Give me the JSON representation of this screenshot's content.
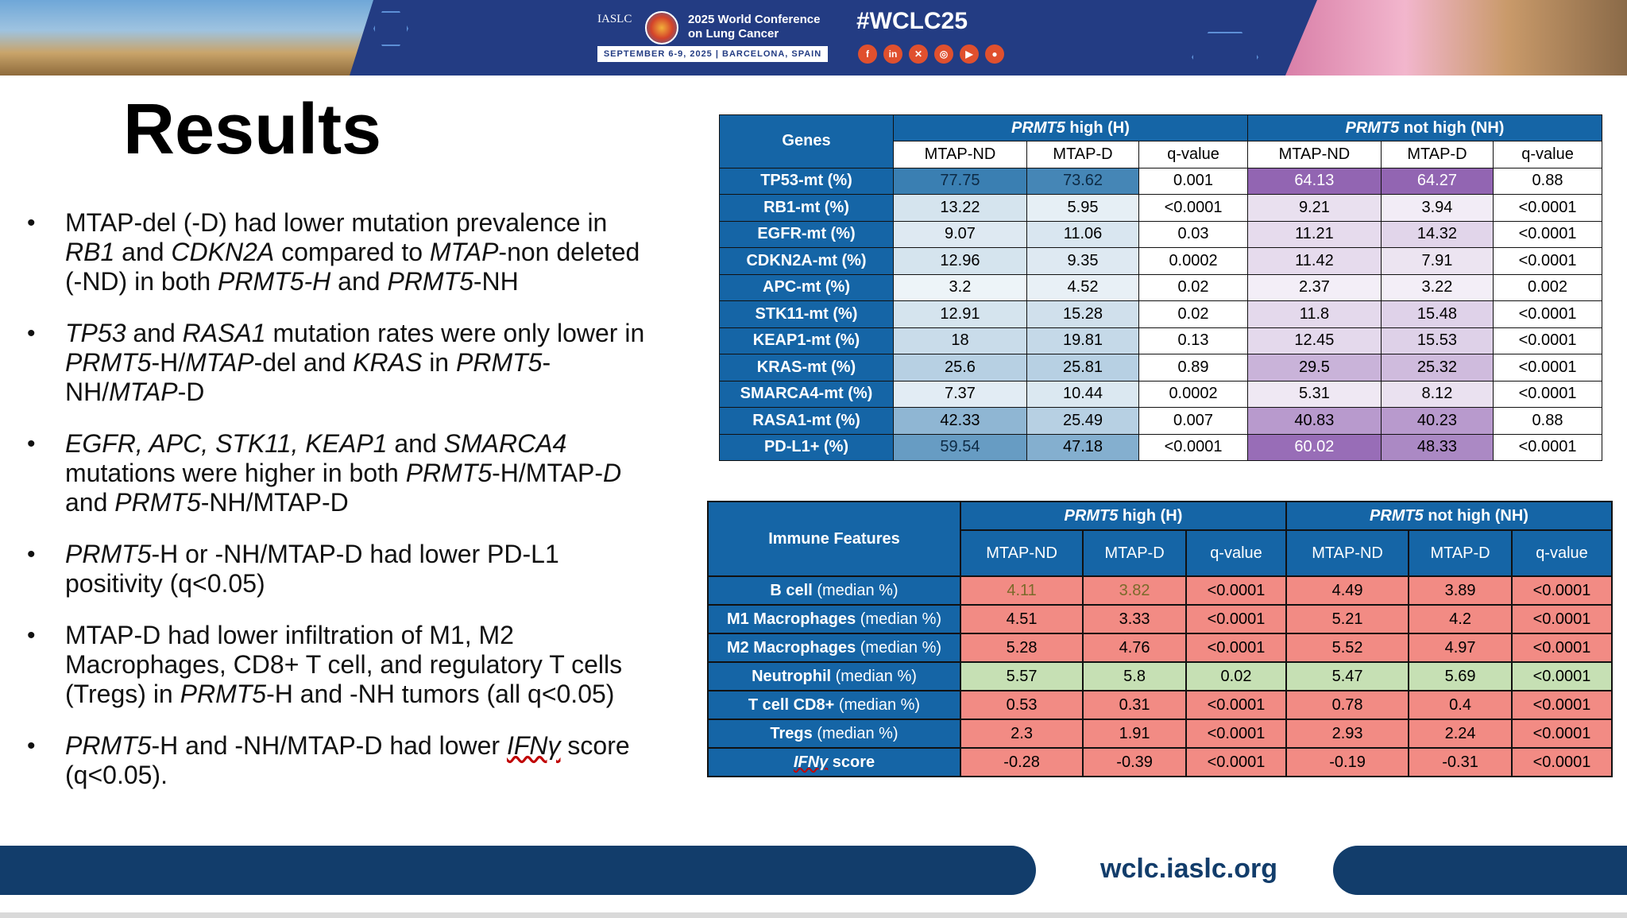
{
  "header": {
    "org": "IASLC",
    "conference": "2025 World Conference on Lung Cancer",
    "conference_line1": "2025 World Conference",
    "conference_line2": "on Lung Cancer",
    "dates": "SEPTEMBER 6-9, 2025  |  BARCELONA, SPAIN",
    "hashtag": "#WCLC25",
    "social_icons": [
      "facebook-icon",
      "linkedin-icon",
      "x-icon",
      "instagram-icon",
      "youtube-icon",
      "wechat-icon"
    ]
  },
  "title": "Results",
  "footer": {
    "url": "wclc.iaslc.org"
  },
  "gene_table": {
    "corner": "Genes",
    "group_h": "PRMT5 high (H)",
    "group_nh": "PRMT5 not high (NH)",
    "subheaders": [
      "MTAP-ND",
      "MTAP-D",
      "q-value",
      "MTAP-ND",
      "MTAP-D",
      "q-value"
    ],
    "rows": [
      {
        "label": "TP53-mt (%)",
        "cells": [
          "77.75",
          "73.62",
          "0.001",
          "64.13",
          "64.27",
          "0.88"
        ]
      },
      {
        "label": "RB1-mt (%)",
        "cells": [
          "13.22",
          "5.95",
          "<0.0001",
          "9.21",
          "3.94",
          "<0.0001"
        ]
      },
      {
        "label": "EGFR-mt (%)",
        "cells": [
          "9.07",
          "11.06",
          "0.03",
          "11.21",
          "14.32",
          "<0.0001"
        ]
      },
      {
        "label": "CDKN2A-mt (%)",
        "cells": [
          "12.96",
          "9.35",
          "0.0002",
          "11.42",
          "7.91",
          "<0.0001"
        ]
      },
      {
        "label": "APC-mt (%)",
        "cells": [
          "3.2",
          "4.52",
          "0.02",
          "2.37",
          "3.22",
          "0.002"
        ]
      },
      {
        "label": "STK11-mt (%)",
        "cells": [
          "12.91",
          "15.28",
          "0.02",
          "11.8",
          "15.48",
          "<0.0001"
        ]
      },
      {
        "label": "KEAP1-mt (%)",
        "cells": [
          "18",
          "19.81",
          "0.13",
          "12.45",
          "15.53",
          "<0.0001"
        ]
      },
      {
        "label": "KRAS-mt (%)",
        "cells": [
          "25.6",
          "25.81",
          "0.89",
          "29.5",
          "25.32",
          "<0.0001"
        ]
      },
      {
        "label": "SMARCA4-mt (%)",
        "cells": [
          "7.37",
          "10.44",
          "0.0002",
          "5.31",
          "8.12",
          "<0.0001"
        ]
      },
      {
        "label": "RASA1-mt (%)",
        "cells": [
          "42.33",
          "25.49",
          "0.007",
          "40.83",
          "40.23",
          "0.88"
        ]
      },
      {
        "label": "PD-L1+ (%)",
        "cells": [
          "59.54",
          "47.18",
          "<0.0001",
          "60.02",
          "48.33",
          "<0.0001"
        ]
      }
    ]
  },
  "immune_table": {
    "corner": "Immune Features",
    "group_h": "PRMT5 high (H)",
    "group_nh": "PRMT5 not high (NH)",
    "subheaders": [
      "MTAP-ND",
      "MTAP-D",
      "q-value",
      "MTAP-ND",
      "MTAP-D",
      "q-value"
    ],
    "rows": [
      {
        "name": "B cell",
        "suffix": " (median %)",
        "cells": [
          "4.11",
          "3.82",
          "<0.0001",
          "4.49",
          "3.89",
          "<0.0001"
        ],
        "color": "#f28b84"
      },
      {
        "name": "M1 Macrophages",
        "suffix": " (median %)",
        "cells": [
          "4.51",
          "3.33",
          "<0.0001",
          "5.21",
          "4.2",
          "<0.0001"
        ],
        "color": "#f28b84"
      },
      {
        "name": "M2 Macrophages",
        "suffix": " (median %)",
        "cells": [
          "5.28",
          "4.76",
          "<0.0001",
          "5.52",
          "4.97",
          "<0.0001"
        ],
        "color": "#f28b84"
      },
      {
        "name": "Neutrophil",
        "suffix": " (median %)",
        "cells": [
          "5.57",
          "5.8",
          "0.02",
          "5.47",
          "5.69",
          "<0.0001"
        ],
        "color": "#c6e0b4"
      },
      {
        "name": "T cell CD8+",
        "suffix": " (median %)",
        "cells": [
          "0.53",
          "0.31",
          "<0.0001",
          "0.78",
          "0.4",
          "<0.0001"
        ],
        "color": "#f28b84"
      },
      {
        "name": "Tregs",
        "suffix": " (median %)",
        "cells": [
          "2.3",
          "1.91",
          "<0.0001",
          "2.93",
          "2.24",
          "<0.0001"
        ],
        "color": "#f28b84"
      },
      {
        "name": "IFNγ",
        "suffix": " score",
        "cells": [
          "-0.28",
          "-0.39",
          "<0.0001",
          "-0.19",
          "-0.31",
          "<0.0001"
        ],
        "color": "#f28b84"
      }
    ]
  },
  "colors": {
    "header_blue": "#1565a6",
    "banner_blue": "#233c83",
    "footer_navy": "#123d6b",
    "high_heat_blue": "#1f6da7",
    "nh_heat_purple": "#6a2c96",
    "decrease_red": "#f28b84",
    "increase_green": "#c6e0b4"
  }
}
